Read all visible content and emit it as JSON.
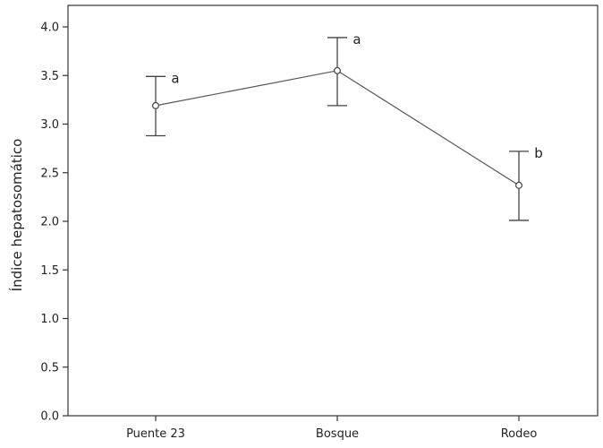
{
  "chart_data": {
    "type": "line",
    "title": "",
    "xlabel": "",
    "ylabel": "Índice hepatosomático",
    "ylim": [
      0.0,
      4.0
    ],
    "yticks": [
      "0.0",
      "0.5",
      "1.0",
      "1.5",
      "2.0",
      "2.5",
      "3.0",
      "3.5",
      "4.0"
    ],
    "categories": [
      "Puente 23",
      "Bosque",
      "Rodeo"
    ],
    "series": [
      {
        "values": [
          3.19,
          3.55,
          2.37
        ],
        "lower": [
          2.88,
          3.19,
          2.01
        ],
        "upper": [
          3.49,
          3.89,
          2.72
        ],
        "annotations": [
          "a",
          "a",
          "b"
        ]
      }
    ],
    "grid": false,
    "legend": "none",
    "colors": {
      "line": "#555555",
      "marker_fill": "#ffffff",
      "axis": "#333333"
    }
  }
}
